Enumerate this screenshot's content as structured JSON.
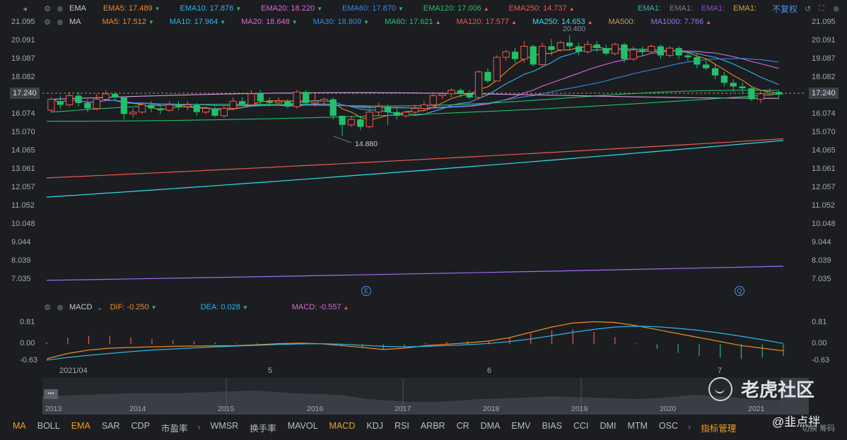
{
  "toolbar1": {
    "label": "EMA",
    "items": [
      {
        "text": "EMA5: 17.489",
        "color": "#f08a24",
        "dir": "down"
      },
      {
        "text": "EMA10: 17.876",
        "color": "#2db4e8",
        "dir": "down"
      },
      {
        "text": "EMA20: 18.220",
        "color": "#e066d8",
        "dir": "down"
      },
      {
        "text": "EMA60: 17.870",
        "color": "#3a86e6",
        "dir": "down"
      },
      {
        "text": "EMA120: 17.006",
        "color": "#22c06a",
        "dir": "up"
      },
      {
        "text": "EMA250: 14.737",
        "color": "#ee5b4b",
        "dir": "up"
      }
    ],
    "extra": [
      {
        "text": "EMA1:",
        "color": "#3fb4a8"
      },
      {
        "text": "EMA1:",
        "color": "#7e7e7e"
      },
      {
        "text": "EMA1:",
        "color": "#8a4ecf"
      },
      {
        "text": "EMA1:",
        "color": "#d4a33c"
      }
    ],
    "no_adjust": "不复权"
  },
  "toolbar2": {
    "label": "MA",
    "items": [
      {
        "text": "MA5: 17.512",
        "color": "#f08a24",
        "dir": "down"
      },
      {
        "text": "MA10: 17.964",
        "color": "#2db4e8",
        "dir": "down"
      },
      {
        "text": "MA20: 18.648",
        "color": "#e066d8",
        "dir": "down"
      },
      {
        "text": "MA30: 18.809",
        "color": "#3a86e6",
        "dir": "down"
      },
      {
        "text": "MA60: 17.621",
        "color": "#22c06a",
        "dir": "up"
      },
      {
        "text": "MA120: 17.577",
        "color": "#ee5b4b",
        "dir": "up"
      },
      {
        "text": "MA250: 14.653",
        "color": "#2ee0f0",
        "dir": "up"
      },
      {
        "text": "MA500:",
        "color": "#c9a04a",
        "dir": ""
      },
      {
        "text": "MA1000: 7.766",
        "color": "#a26cf2",
        "dir": "up"
      }
    ]
  },
  "price_axis": [
    "21.095",
    "20.091",
    "19.087",
    "18.082",
    "17.240",
    "16.074",
    "15.070",
    "14.065",
    "13.061",
    "12.057",
    "11.052",
    "10.048",
    "9.044",
    "8.039",
    "7.035"
  ],
  "current_price": "17.240",
  "high_label": "20.400",
  "low_label": "14.880",
  "marker_e": "E",
  "marker_q": "Q",
  "macd_bar": {
    "label": "MACD",
    "dif": "DIF: -0.250",
    "dea": "DEA: 0.028",
    "macd": "MACD: -0.557"
  },
  "macd_axis": [
    "0.81",
    "0.00",
    "-0.63"
  ],
  "time_labels": [
    "2021/04",
    "5",
    "6",
    "7"
  ],
  "nav_years": [
    "2013",
    "2014",
    "2015",
    "2016",
    "2017",
    "2018",
    "2019",
    "2020",
    "2021"
  ],
  "tabs": [
    "MA",
    "BOLL",
    "EMA",
    "SAR",
    "CDP",
    "市盈率",
    "WMSR",
    "换手率",
    "MAVOL",
    "MACD",
    "KDJ",
    "RSI",
    "ARBR",
    "CR",
    "DMA",
    "EMV",
    "BIAS",
    "CCI",
    "DMI",
    "MTM",
    "OSC"
  ],
  "active_tabs": [
    "MA",
    "EMA",
    "MACD"
  ],
  "manage": "指标管理",
  "watermark_name": "老虎社区",
  "watermark_user": "@韭点拌",
  "watermark_sub": "切换 筹码",
  "chart_data": {
    "type": "candlestick",
    "candles": [
      [
        16.3,
        16.9,
        16.2,
        17.0
      ],
      [
        16.8,
        16.6,
        16.4,
        17.1
      ],
      [
        16.6,
        17.1,
        16.5,
        17.3
      ],
      [
        17.1,
        16.7,
        16.5,
        17.3
      ],
      [
        16.7,
        16.4,
        16.2,
        16.9
      ],
      [
        16.4,
        16.9,
        16.3,
        17.2
      ],
      [
        16.9,
        17.2,
        16.8,
        17.4
      ],
      [
        17.2,
        17.0,
        16.8,
        17.3
      ],
      [
        17.0,
        16.1,
        15.8,
        17.0
      ],
      [
        16.1,
        16.2,
        15.9,
        16.4
      ],
      [
        16.2,
        16.6,
        16.1,
        16.7
      ],
      [
        16.6,
        16.4,
        16.2,
        16.8
      ],
      [
        16.4,
        16.3,
        16.1,
        16.6
      ],
      [
        16.3,
        16.6,
        16.2,
        16.8
      ],
      [
        16.6,
        16.5,
        16.3,
        16.8
      ],
      [
        16.5,
        16.6,
        16.3,
        16.8
      ],
      [
        16.6,
        16.2,
        16.0,
        16.7
      ],
      [
        16.2,
        16.4,
        16.1,
        16.5
      ],
      [
        16.4,
        16.0,
        15.9,
        16.5
      ],
      [
        16.0,
        16.4,
        15.9,
        16.6
      ],
      [
        16.4,
        16.8,
        16.3,
        17.0
      ],
      [
        16.8,
        16.6,
        16.5,
        17.0
      ],
      [
        16.6,
        17.2,
        16.5,
        17.4
      ],
      [
        17.2,
        16.8,
        16.6,
        17.4
      ],
      [
        16.8,
        16.7,
        16.5,
        17.0
      ],
      [
        16.7,
        16.8,
        16.6,
        17.0
      ],
      [
        16.8,
        16.5,
        16.4,
        16.9
      ],
      [
        16.5,
        17.3,
        16.4,
        17.4
      ],
      [
        17.3,
        16.7,
        16.6,
        17.4
      ],
      [
        16.7,
        16.8,
        16.5,
        17.3
      ],
      [
        16.8,
        16.9,
        16.6,
        17.0
      ],
      [
        16.9,
        16.0,
        15.8,
        17.0
      ],
      [
        16.0,
        15.5,
        14.9,
        16.0
      ],
      [
        15.5,
        15.8,
        15.4,
        16.0
      ],
      [
        15.8,
        15.4,
        15.2,
        15.9
      ],
      [
        15.4,
        16.2,
        15.3,
        16.4
      ],
      [
        16.2,
        16.5,
        16.0,
        16.7
      ],
      [
        16.5,
        16.2,
        15.5,
        16.6
      ],
      [
        16.2,
        16.0,
        15.8,
        16.4
      ],
      [
        16.0,
        16.2,
        15.9,
        16.3
      ],
      [
        16.2,
        16.4,
        16.1,
        16.6
      ],
      [
        16.4,
        16.6,
        16.3,
        16.8
      ],
      [
        16.6,
        17.1,
        16.5,
        17.3
      ],
      [
        17.1,
        17.2,
        16.9,
        17.3
      ],
      [
        17.2,
        17.4,
        17.0,
        17.5
      ],
      [
        17.4,
        17.2,
        17.0,
        17.5
      ],
      [
        17.2,
        17.0,
        16.9,
        17.4
      ],
      [
        17.0,
        18.4,
        16.9,
        18.5
      ],
      [
        18.4,
        17.9,
        17.8,
        18.6
      ],
      [
        17.9,
        19.2,
        17.9,
        19.3
      ],
      [
        19.2,
        19.5,
        19.0,
        19.6
      ],
      [
        19.5,
        19.1,
        18.9,
        19.7
      ],
      [
        19.1,
        19.8,
        18.9,
        20.1
      ],
      [
        19.8,
        18.8,
        18.7,
        19.9
      ],
      [
        18.8,
        19.8,
        18.7,
        20.0
      ],
      [
        19.8,
        19.6,
        19.3,
        20.2
      ],
      [
        19.6,
        20.0,
        19.5,
        20.1
      ],
      [
        20.0,
        19.8,
        19.6,
        20.4
      ],
      [
        19.8,
        19.5,
        19.3,
        20.0
      ],
      [
        19.5,
        19.9,
        19.4,
        20.1
      ],
      [
        19.9,
        19.7,
        19.5,
        20.1
      ],
      [
        19.7,
        19.4,
        19.3,
        19.9
      ],
      [
        19.4,
        19.9,
        19.3,
        20.0
      ],
      [
        19.9,
        19.1,
        18.9,
        20.0
      ],
      [
        19.1,
        19.6,
        19.0,
        19.8
      ],
      [
        19.6,
        19.5,
        19.3,
        19.8
      ],
      [
        19.5,
        19.8,
        19.4,
        19.9
      ],
      [
        19.8,
        19.3,
        19.1,
        19.9
      ],
      [
        19.3,
        19.7,
        19.2,
        19.8
      ],
      [
        19.7,
        19.3,
        19.1,
        19.8
      ],
      [
        19.3,
        19.2,
        19.0,
        19.5
      ],
      [
        19.2,
        18.8,
        18.6,
        19.4
      ],
      [
        18.8,
        18.6,
        18.5,
        19.1
      ],
      [
        18.6,
        18.2,
        18.0,
        18.8
      ],
      [
        18.2,
        17.8,
        17.6,
        18.4
      ],
      [
        17.8,
        17.6,
        17.3,
        18.0
      ],
      [
        17.6,
        17.5,
        17.2,
        17.8
      ],
      [
        17.5,
        16.9,
        16.8,
        17.6
      ],
      [
        16.9,
        17.2,
        16.7,
        17.4
      ],
      [
        17.2,
        17.3,
        17.1,
        17.5
      ],
      [
        17.3,
        17.2,
        16.9,
        17.4
      ]
    ],
    "ma_lines": {
      "MA1000": {
        "from": 7.0,
        "to": 7.77
      },
      "MA250": {
        "from": 11.55,
        "to": 14.65
      },
      "EMA250": {
        "from": 12.6,
        "to": 14.74
      }
    },
    "macd": {
      "dif": [
        -0.55,
        -0.35,
        -0.22,
        -0.15,
        -0.12,
        -0.1,
        -0.08,
        -0.07,
        -0.06,
        -0.05,
        -0.02,
        0.02,
        0.04,
        0.02,
        -0.05,
        -0.12,
        -0.2,
        -0.15,
        -0.05,
        0.0,
        0.05,
        0.12,
        0.25,
        0.45,
        0.65,
        0.8,
        0.85,
        0.82,
        0.7,
        0.55,
        0.4,
        0.25,
        0.1,
        -0.05,
        -0.15,
        -0.25
      ],
      "dea": [
        -0.6,
        -0.5,
        -0.42,
        -0.35,
        -0.28,
        -0.22,
        -0.18,
        -0.14,
        -0.1,
        -0.07,
        -0.04,
        -0.01,
        0.01,
        0.02,
        0.0,
        -0.04,
        -0.08,
        -0.1,
        -0.08,
        -0.05,
        -0.02,
        0.03,
        0.1,
        0.2,
        0.32,
        0.45,
        0.56,
        0.65,
        0.68,
        0.66,
        0.6,
        0.52,
        0.42,
        0.3,
        0.17,
        0.03
      ]
    },
    "ylim": [
      7.035,
      21.095
    ],
    "macd_ylim": [
      -0.63,
      0.81
    ]
  }
}
